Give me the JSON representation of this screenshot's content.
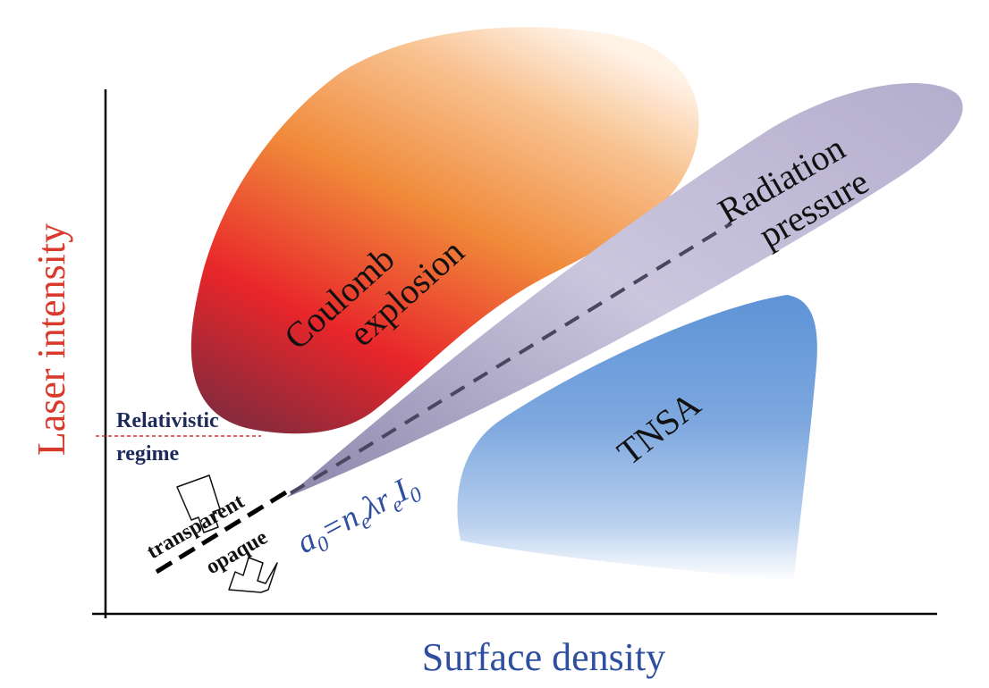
{
  "axes": {
    "x_title": "Surface density",
    "y_title": "Laser intensity"
  },
  "regions": {
    "coulomb": {
      "line1": "Coulomb",
      "line2": "explosion"
    },
    "radiation": {
      "line1": "Radiation",
      "line2": "pressure"
    },
    "tnsa": {
      "label": "TNSA"
    }
  },
  "relativistic": {
    "line1": "Relativistic",
    "line2": "regime"
  },
  "transparency": {
    "upper": "transparent",
    "lower": "opaque"
  },
  "formula": {
    "a": "a",
    "a_sub": "0",
    "eq": "=n",
    "n_sub": "e",
    "lambda_r": "λr",
    "r_sub": "e",
    "I": "I",
    "I_sub": "0"
  },
  "colors": {
    "x_title": "#2e4ea0",
    "y_title": "#d93a2b",
    "relativistic": "#1e2a5a",
    "relativistic_line": "#e03030",
    "formula": "#2e4ea0",
    "coulomb_top": "#f7b27a",
    "coulomb_mid": "#e8262a",
    "radiation": "#a59ec0",
    "tnsa": "#4a86cf"
  }
}
